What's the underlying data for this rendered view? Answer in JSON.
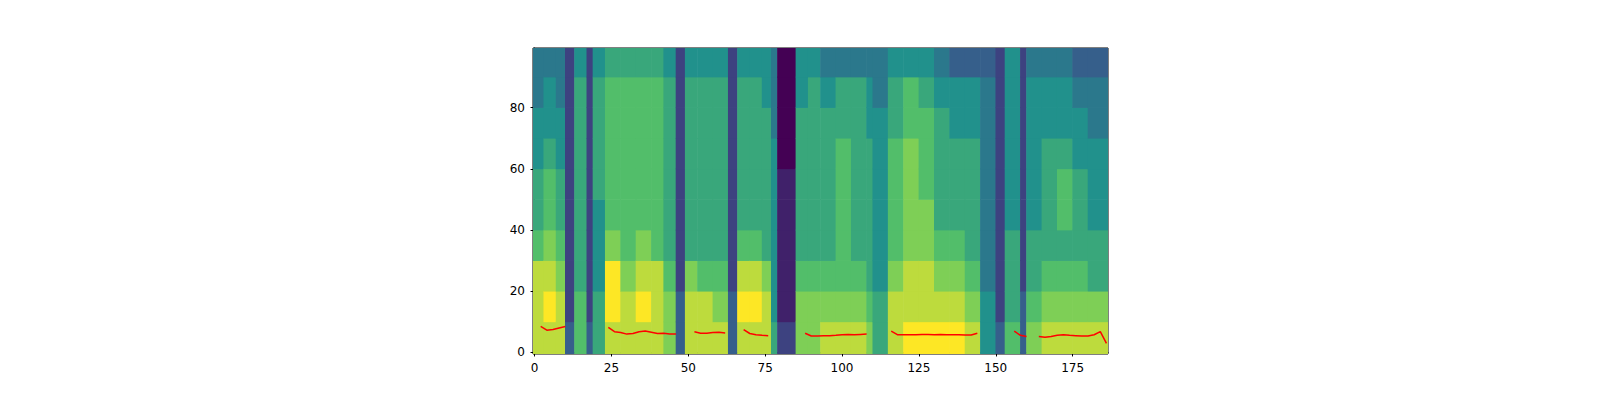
{
  "chart_data": {
    "type": "heatmap",
    "xlim": [
      -0.5,
      186.5
    ],
    "ylim": [
      -0.5,
      99.5
    ],
    "xticks": [
      0,
      25,
      50,
      75,
      100,
      125,
      150,
      175
    ],
    "yticks": [
      0,
      20,
      40,
      60,
      80
    ],
    "grid": false,
    "zlim": [
      0,
      10
    ],
    "x_edges": [
      -0.5,
      3,
      7,
      10,
      13,
      17,
      19,
      23,
      28,
      33,
      38,
      42,
      46,
      49,
      53,
      58,
      63,
      66,
      70,
      74,
      77,
      79,
      85,
      89,
      93,
      98,
      103,
      108,
      110,
      115,
      120,
      125,
      130,
      135,
      140,
      145,
      150,
      153,
      158,
      160,
      165,
      170,
      175,
      180,
      186.5
    ],
    "y_edges": [
      -0.5,
      10,
      20,
      30,
      40,
      50,
      60,
      70,
      80,
      90,
      99.5
    ],
    "cells": [
      [
        9,
        9,
        9,
        7,
        6,
        6,
        5,
        5,
        4,
        4
      ],
      [
        9,
        10,
        9,
        8,
        7,
        7,
        6,
        5,
        5,
        4
      ],
      [
        9,
        9,
        8,
        7,
        6,
        6,
        5,
        5,
        4,
        4
      ],
      [
        3,
        2,
        2,
        2,
        2,
        2,
        2,
        2,
        2,
        2
      ],
      [
        7,
        7,
        6,
        6,
        6,
        6,
        6,
        6,
        6,
        5
      ],
      [
        3,
        2,
        2,
        2,
        2,
        2,
        2,
        2,
        2,
        2
      ],
      [
        6,
        6,
        5,
        5,
        5,
        6,
        6,
        6,
        6,
        5
      ],
      [
        9,
        10,
        10,
        8,
        7,
        7,
        7,
        7,
        7,
        6
      ],
      [
        9,
        9,
        8,
        7,
        7,
        7,
        7,
        7,
        7,
        6
      ],
      [
        9,
        10,
        9,
        8,
        7,
        7,
        7,
        7,
        7,
        6
      ],
      [
        9,
        9,
        9,
        7,
        7,
        7,
        7,
        7,
        7,
        6
      ],
      [
        8,
        8,
        7,
        6,
        6,
        6,
        6,
        6,
        6,
        5
      ],
      [
        3,
        3,
        2,
        2,
        2,
        2,
        2,
        2,
        2,
        2
      ],
      [
        9,
        9,
        8,
        6,
        6,
        6,
        6,
        6,
        6,
        5
      ],
      [
        9,
        9,
        7,
        6,
        6,
        6,
        6,
        6,
        6,
        5
      ],
      [
        9,
        8,
        7,
        6,
        6,
        6,
        6,
        6,
        6,
        5
      ],
      [
        3,
        3,
        2,
        2,
        2,
        2,
        2,
        2,
        2,
        2
      ],
      [
        9,
        10,
        9,
        7,
        6,
        6,
        6,
        6,
        6,
        5
      ],
      [
        9,
        10,
        9,
        7,
        6,
        6,
        6,
        6,
        6,
        5
      ],
      [
        9,
        9,
        8,
        6,
        6,
        6,
        6,
        6,
        5,
        5
      ],
      [
        6,
        5,
        5,
        5,
        5,
        5,
        5,
        4,
        4,
        4
      ],
      [
        2,
        1,
        1,
        1,
        1,
        1,
        0,
        0,
        0,
        0
      ],
      [
        8,
        8,
        7,
        6,
        6,
        6,
        6,
        6,
        5,
        5
      ],
      [
        8,
        8,
        7,
        6,
        6,
        6,
        6,
        6,
        6,
        5
      ],
      [
        9,
        8,
        7,
        6,
        6,
        6,
        6,
        6,
        5,
        4
      ],
      [
        9,
        8,
        7,
        7,
        7,
        7,
        7,
        6,
        6,
        4
      ],
      [
        9,
        8,
        7,
        6,
        6,
        6,
        6,
        6,
        6,
        4
      ],
      [
        8,
        7,
        6,
        6,
        6,
        6,
        6,
        5,
        5,
        4
      ],
      [
        6,
        6,
        5,
        5,
        5,
        5,
        5,
        5,
        4,
        4
      ],
      [
        9,
        9,
        8,
        7,
        7,
        7,
        7,
        6,
        6,
        5
      ],
      [
        10,
        9,
        9,
        8,
        8,
        8,
        8,
        7,
        7,
        5
      ],
      [
        10,
        9,
        9,
        8,
        8,
        7,
        7,
        7,
        6,
        5
      ],
      [
        10,
        9,
        8,
        7,
        6,
        6,
        6,
        6,
        5,
        4
      ],
      [
        10,
        9,
        8,
        7,
        6,
        6,
        6,
        5,
        5,
        3
      ],
      [
        9,
        8,
        7,
        6,
        6,
        6,
        6,
        5,
        5,
        3
      ],
      [
        5,
        5,
        4,
        4,
        4,
        4,
        4,
        4,
        4,
        3
      ],
      [
        3,
        2,
        2,
        2,
        2,
        2,
        2,
        2,
        2,
        2
      ],
      [
        7,
        6,
        6,
        6,
        5,
        5,
        5,
        5,
        5,
        5
      ],
      [
        3,
        3,
        2,
        2,
        2,
        2,
        2,
        2,
        2,
        2
      ],
      [
        8,
        7,
        6,
        6,
        5,
        5,
        5,
        5,
        5,
        4
      ],
      [
        9,
        8,
        7,
        6,
        6,
        6,
        6,
        5,
        5,
        4
      ],
      [
        9,
        8,
        7,
        6,
        7,
        7,
        6,
        5,
        5,
        4
      ],
      [
        9,
        8,
        7,
        6,
        6,
        6,
        5,
        5,
        4,
        3
      ],
      [
        9,
        8,
        6,
        6,
        5,
        5,
        5,
        4,
        4,
        3
      ]
    ],
    "line": {
      "type": "line",
      "color": "#ff0000",
      "x": [
        0,
        2,
        4,
        6,
        8,
        10,
        12,
        14,
        16,
        18,
        20,
        22,
        24,
        26,
        28,
        30,
        32,
        34,
        36,
        38,
        40,
        42,
        44,
        46,
        48,
        50,
        52,
        54,
        56,
        58,
        60,
        62,
        64,
        66,
        68,
        70,
        72,
        74,
        76,
        78,
        80,
        82,
        84,
        86,
        88,
        90,
        92,
        94,
        96,
        98,
        100,
        102,
        104,
        106,
        108,
        110,
        112,
        114,
        116,
        118,
        120,
        122,
        124,
        126,
        128,
        130,
        132,
        134,
        136,
        138,
        140,
        142,
        144,
        146,
        148,
        150,
        152,
        154,
        156,
        158,
        160,
        162,
        164,
        166,
        168,
        170,
        172,
        174,
        176,
        178,
        180,
        182,
        184,
        186
      ],
      "values": [
        null,
        8.5,
        7.3,
        7.5,
        8,
        8.5,
        null,
        null,
        null,
        null,
        null,
        null,
        8.2,
        6.8,
        6.5,
        6,
        6.2,
        6.8,
        7,
        6.6,
        6.2,
        6.3,
        6,
        6,
        null,
        null,
        6.8,
        6.3,
        6.3,
        6.5,
        6.6,
        6.4,
        null,
        null,
        7.5,
        6.2,
        5.8,
        5.6,
        5.5,
        null,
        null,
        null,
        null,
        null,
        6.3,
        5.4,
        5.4,
        5.5,
        5.5,
        5.6,
        5.8,
        5.9,
        5.8,
        5.9,
        6,
        null,
        null,
        null,
        7,
        5.8,
        5.8,
        5.8,
        5.8,
        5.9,
        5.9,
        5.8,
        5.9,
        5.8,
        5.8,
        5.8,
        5.7,
        5.7,
        6.3,
        null,
        null,
        null,
        null,
        null,
        7,
        5.6,
        5.2,
        null,
        5.2,
        5,
        5.2,
        5.6,
        5.8,
        5.6,
        5.5,
        5.4,
        5.4,
        5.8,
        6.8,
        3
      ]
    }
  }
}
